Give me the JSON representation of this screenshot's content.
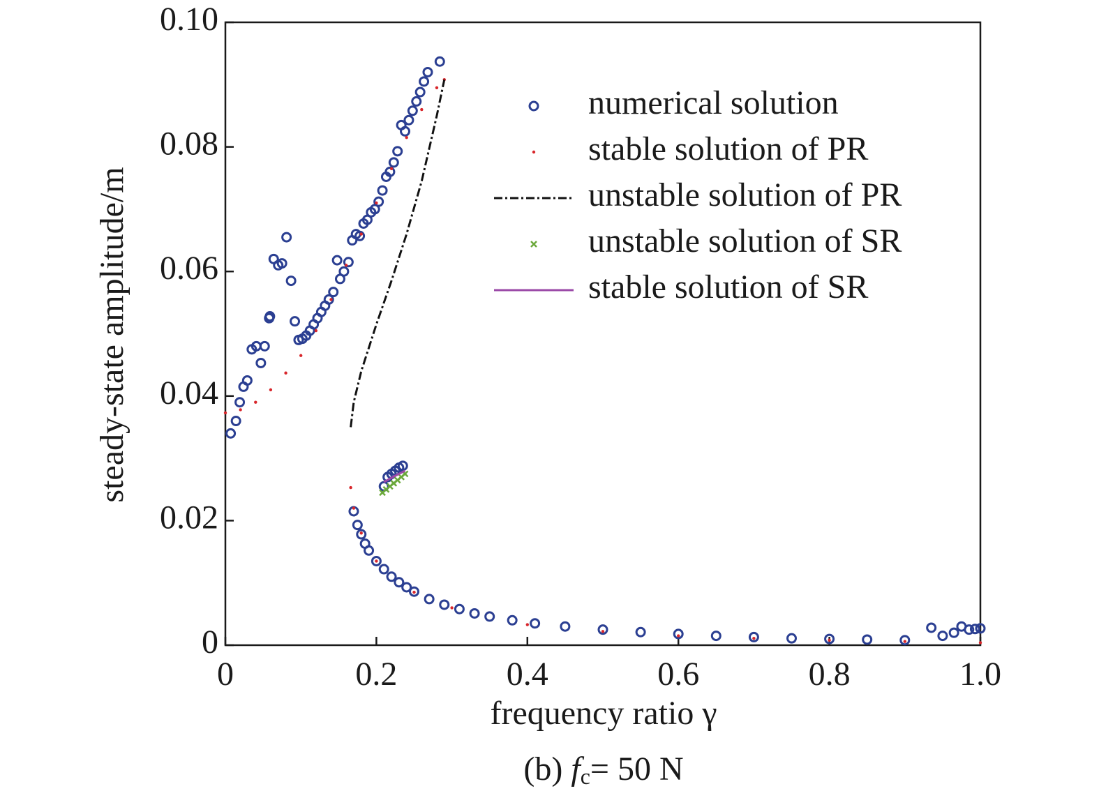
{
  "chart_data": {
    "type": "scatter",
    "xlabel": "frequency ratio γ",
    "ylabel": "steady-state amplitude/m",
    "caption": {
      "prefix": "(b)",
      "symbol": "f",
      "subscript": "c",
      "rest": "= 50 N"
    },
    "xlim": [
      0,
      1
    ],
    "ylim": [
      0,
      0.1
    ],
    "xticks": [
      0,
      0.2,
      0.4,
      0.6,
      0.8,
      {
        "value": 1,
        "label": "1.0"
      }
    ],
    "yticks": [
      0,
      0.02,
      0.04,
      0.06,
      0.08,
      {
        "value": 0.1,
        "label": "0.10"
      }
    ],
    "grid": false,
    "legend": "upper right",
    "series": [
      {
        "name": "numerical solution",
        "color": "#2b3f92",
        "marker": "circle",
        "x": [
          0.007,
          0.014,
          0.019,
          0.024,
          0.029,
          0.035,
          0.041,
          0.047,
          0.052,
          0.058,
          0.059,
          0.064,
          0.07,
          0.075,
          0.081,
          0.087,
          0.092,
          0.097,
          0.102,
          0.107,
          0.112,
          0.117,
          0.122,
          0.127,
          0.132,
          0.137,
          0.143,
          0.148,
          0.152,
          0.157,
          0.163,
          0.168,
          0.173,
          0.178,
          0.183,
          0.188,
          0.193,
          0.198,
          0.203,
          0.208,
          0.213,
          0.218,
          0.223,
          0.228,
          0.233,
          0.238,
          0.243,
          0.248,
          0.253,
          0.258,
          0.263,
          0.268,
          0.284,
          0.21,
          0.215,
          0.22,
          0.225,
          0.23,
          0.235,
          0.17,
          0.175,
          0.18,
          0.185,
          0.19,
          0.2,
          0.21,
          0.22,
          0.23,
          0.24,
          0.25,
          0.27,
          0.29,
          0.31,
          0.33,
          0.35,
          0.38,
          0.41,
          0.45,
          0.5,
          0.55,
          0.6,
          0.65,
          0.7,
          0.75,
          0.8,
          0.85,
          0.9,
          0.935,
          0.95,
          0.965,
          0.975,
          0.985,
          0.993,
          1.0
        ],
        "values": [
          0.034,
          0.036,
          0.039,
          0.0415,
          0.0425,
          0.0475,
          0.048,
          0.0453,
          0.048,
          0.0525,
          0.0528,
          0.062,
          0.061,
          0.0613,
          0.0655,
          0.0585,
          0.052,
          0.049,
          0.0492,
          0.0497,
          0.0505,
          0.0515,
          0.0525,
          0.0535,
          0.0545,
          0.0555,
          0.0567,
          0.0618,
          0.0588,
          0.06,
          0.0615,
          0.065,
          0.066,
          0.0657,
          0.0677,
          0.0683,
          0.0695,
          0.07,
          0.0712,
          0.073,
          0.0752,
          0.076,
          0.0775,
          0.0793,
          0.0835,
          0.0825,
          0.0843,
          0.0858,
          0.0873,
          0.0888,
          0.0905,
          0.092,
          0.0937,
          0.0255,
          0.027,
          0.0275,
          0.028,
          0.0285,
          0.0288,
          0.0215,
          0.0193,
          0.0178,
          0.0163,
          0.0152,
          0.0135,
          0.0122,
          0.011,
          0.0101,
          0.0093,
          0.0086,
          0.0074,
          0.0065,
          0.0058,
          0.0051,
          0.0046,
          0.004,
          0.0035,
          0.003,
          0.0025,
          0.0021,
          0.0018,
          0.0015,
          0.0013,
          0.0011,
          0.001,
          0.0009,
          0.0008,
          0.0028,
          0.0015,
          0.002,
          0.003,
          0.0025,
          0.0026,
          0.0027
        ]
      },
      {
        "name": "stable solution of PR",
        "color": "#d8262b",
        "marker": "dot",
        "x": [
          0,
          0.02,
          0.04,
          0.06,
          0.08,
          0.1,
          0.12,
          0.14,
          0.16,
          0.18,
          0.2,
          0.22,
          0.24,
          0.26,
          0.28,
          0.29,
          0.166,
          0.17,
          0.18,
          0.2,
          0.25,
          0.3,
          0.4,
          0.5,
          0.6,
          0.7,
          0.8,
          0.9,
          1.0
        ],
        "values": [
          0.0373,
          0.0378,
          0.039,
          0.041,
          0.0437,
          0.0465,
          0.0505,
          0.0555,
          0.061,
          0.066,
          0.071,
          0.0765,
          0.0815,
          0.086,
          0.0895,
          0.0908,
          0.0253,
          0.022,
          0.018,
          0.0135,
          0.0085,
          0.006,
          0.0033,
          0.0022,
          0.0015,
          0.0011,
          0.0008,
          0.0006,
          0.0004
        ]
      },
      {
        "name": "unstable solution of PR",
        "color": "#111111",
        "marker": "dashdot",
        "x": [
          0.166,
          0.17,
          0.18,
          0.2,
          0.22,
          0.24,
          0.26,
          0.28,
          0.29
        ],
        "values": [
          0.035,
          0.039,
          0.044,
          0.0515,
          0.0585,
          0.066,
          0.0745,
          0.085,
          0.0908
        ]
      },
      {
        "name": "unstable solution of SR",
        "color": "#6aa83a",
        "marker": "x",
        "x": [
          0.208,
          0.213,
          0.218,
          0.223,
          0.228,
          0.233,
          0.238
        ],
        "values": [
          0.0245,
          0.025,
          0.0255,
          0.026,
          0.0265,
          0.027,
          0.0275
        ]
      },
      {
        "name": "stable solution of SR",
        "color": "#9b4aa8",
        "marker": "line",
        "x": [
          0.21,
          0.225,
          0.238
        ],
        "values": [
          0.0262,
          0.0272,
          0.028
        ]
      }
    ]
  }
}
